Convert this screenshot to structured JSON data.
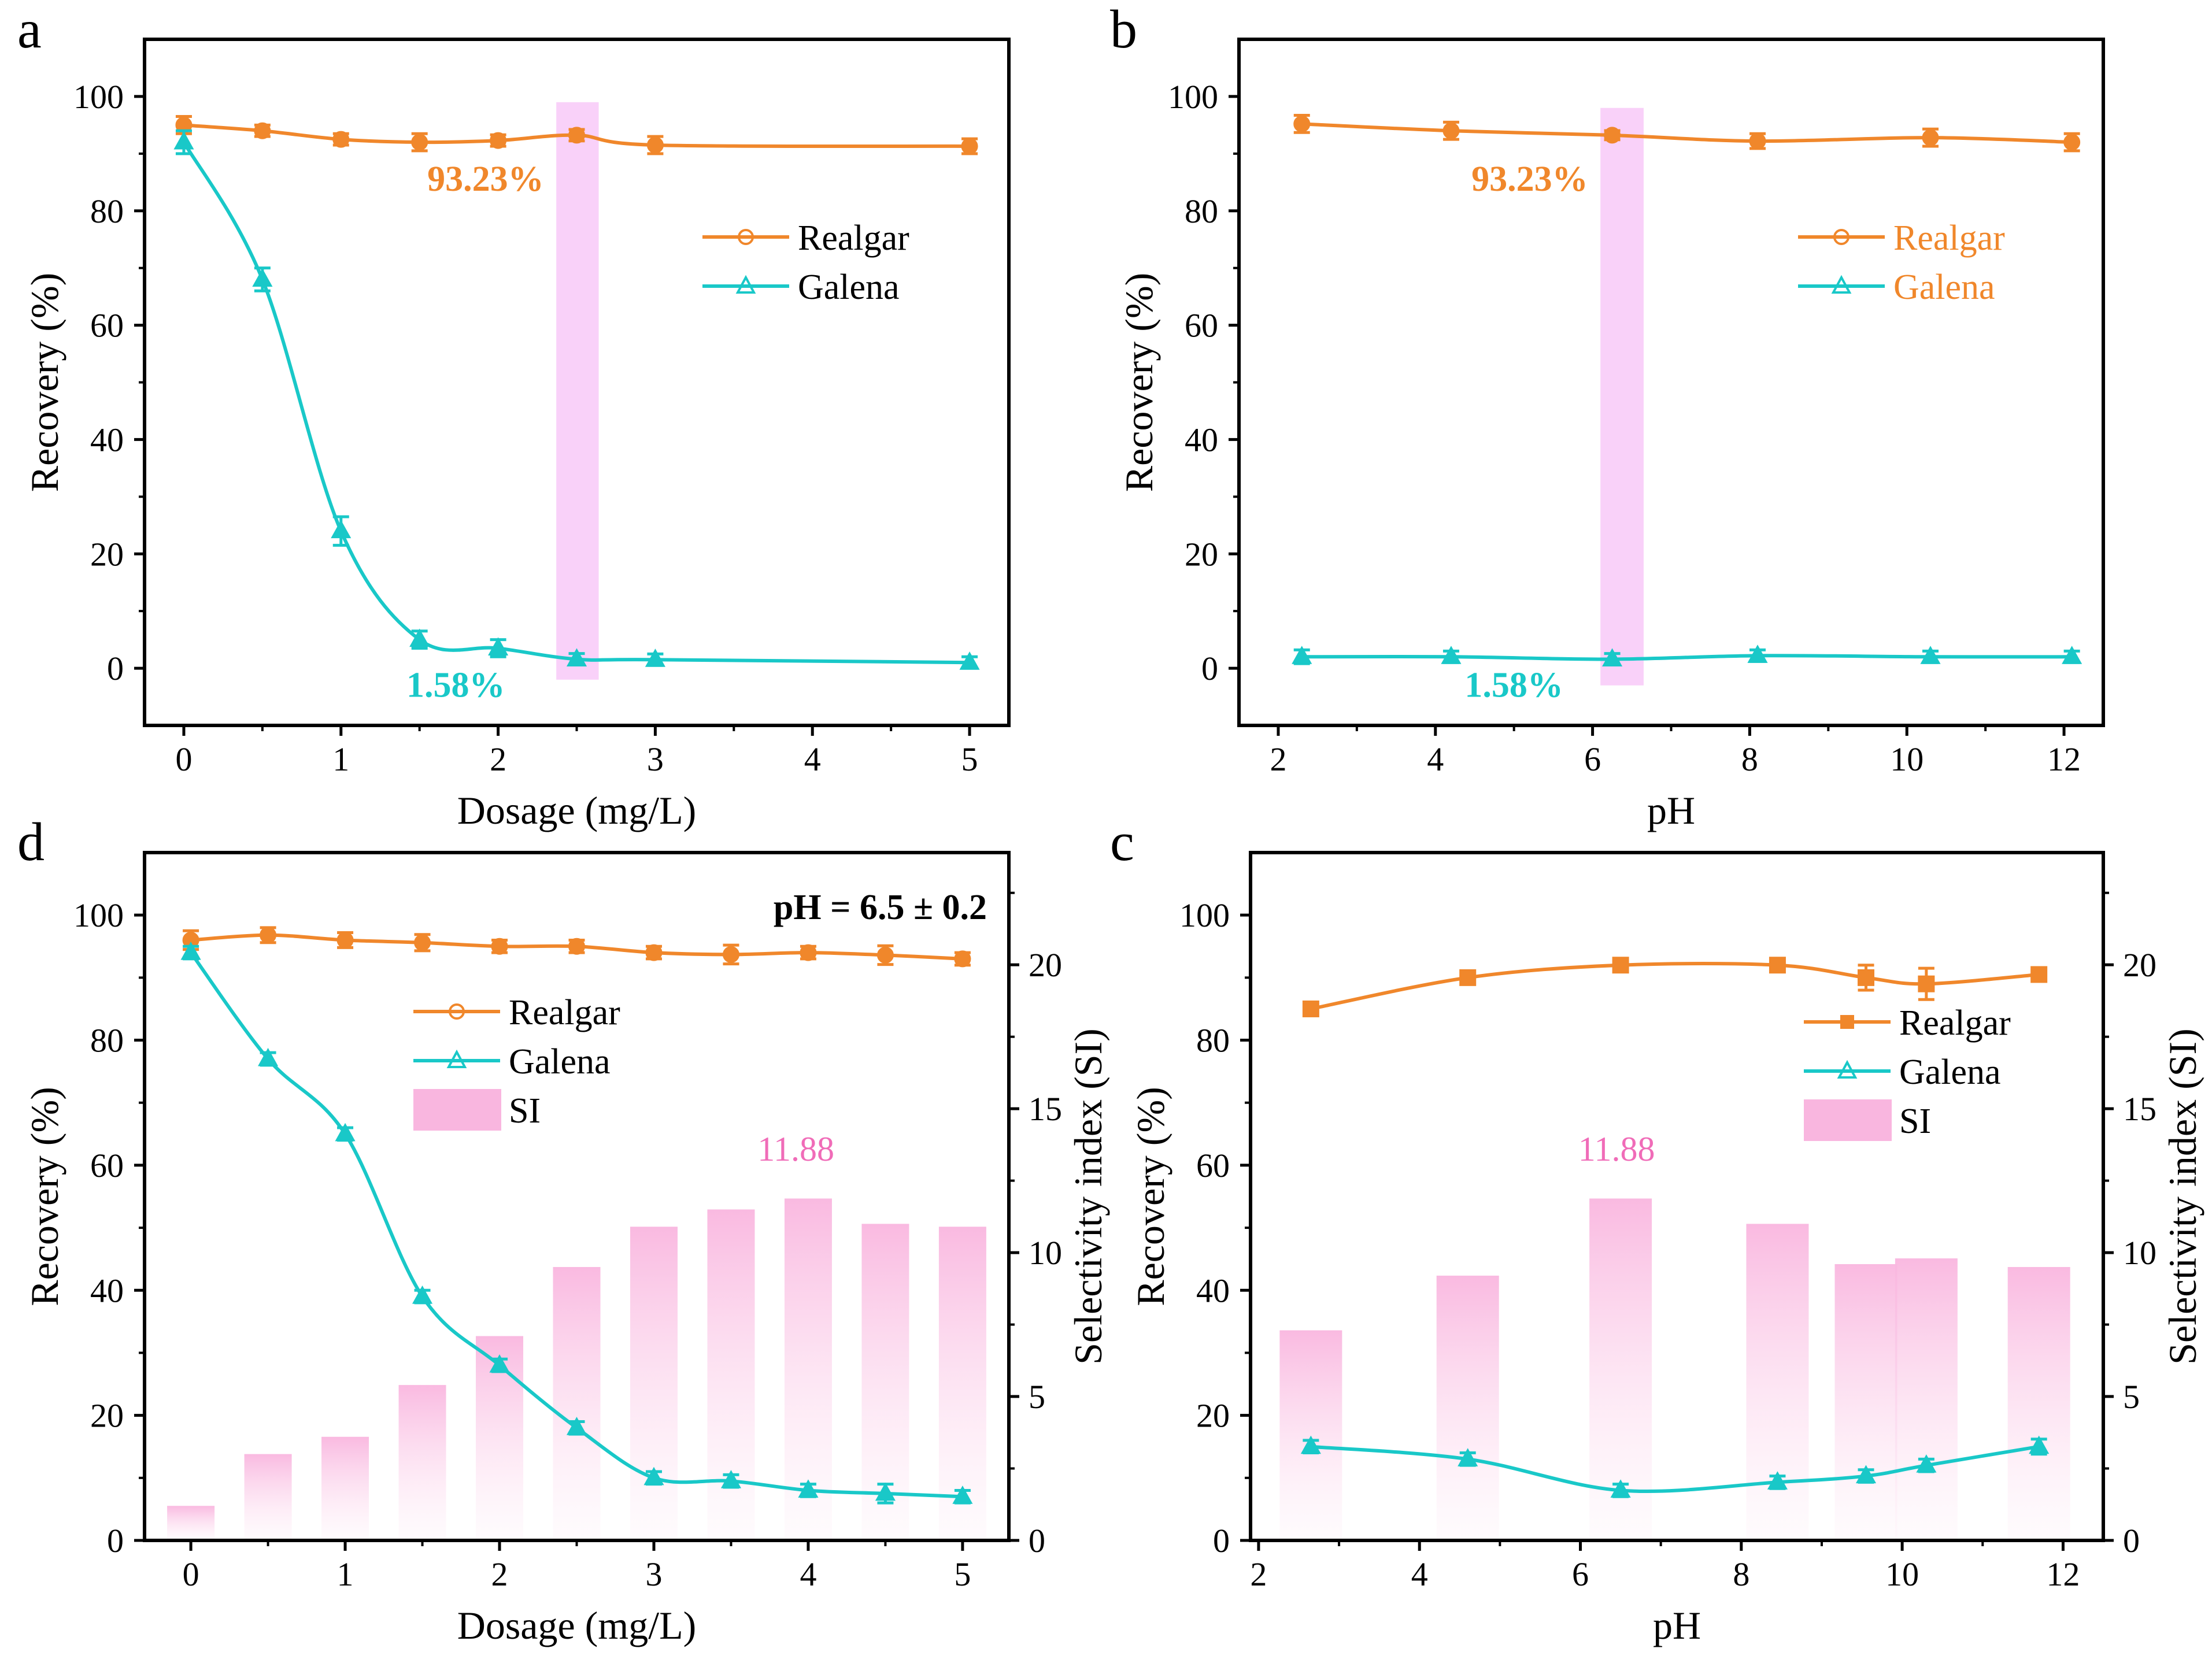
{
  "colors": {
    "realgar": "#F0872B",
    "galena": "#19C8C8",
    "si": "#F9B6DF",
    "highlight": "#F7C6F7",
    "axis": "#000000"
  },
  "chart_data": [
    {
      "id": "a",
      "letter": "a",
      "type": "line",
      "xlabel": "Dosage (mg/L)",
      "ylabel": "Recovery (%)",
      "xlim": [
        -0.25,
        5.25
      ],
      "ylim": [
        -10,
        110
      ],
      "xticks": [
        0,
        1,
        2,
        3,
        4,
        5
      ],
      "yticks": [
        0,
        20,
        40,
        60,
        80,
        100
      ],
      "highlight": {
        "x0": 2.37,
        "x1": 2.64,
        "y0": -2,
        "y1": 99
      },
      "series": [
        {
          "name": "Realgar",
          "color": "#F0872B",
          "marker": "circle",
          "x": [
            0,
            0.5,
            1,
            1.5,
            2,
            2.5,
            3,
            5
          ],
          "y": [
            95,
            94,
            92.5,
            92,
            92.3,
            93.23,
            91.5,
            91.3
          ],
          "err": [
            1.5,
            1.0,
            1.0,
            1.5,
            1.0,
            1.0,
            1.5,
            1.3
          ]
        },
        {
          "name": "Galena",
          "color": "#19C8C8",
          "marker": "triangle",
          "x": [
            0,
            0.5,
            1,
            1.5,
            2,
            2.5,
            3,
            5
          ],
          "y": [
            92,
            68,
            24,
            5,
            3.5,
            1.58,
            1.5,
            1.0
          ],
          "err": [
            2,
            2,
            2.5,
            1.5,
            1.5,
            1.0,
            1.0,
            1.0
          ]
        }
      ],
      "legend": {
        "position": "right",
        "entries": [
          "Realgar",
          "Galena"
        ],
        "text_color": "#000000"
      },
      "annotations": [
        {
          "text": "93.23%",
          "x": 1.92,
          "y": 83.5,
          "color": "#F0872B"
        },
        {
          "text": "1.58%",
          "x": 1.73,
          "y": -5,
          "color": "#19C8C8"
        }
      ]
    },
    {
      "id": "b",
      "letter": "b",
      "type": "line",
      "xlabel": "pH",
      "ylabel": "Recovery (%)",
      "xlim": [
        1.5,
        12.5
      ],
      "ylim": [
        -10,
        110
      ],
      "xticks": [
        2,
        4,
        6,
        8,
        10,
        12
      ],
      "yticks": [
        0,
        20,
        40,
        60,
        80,
        100
      ],
      "highlight": {
        "x0": 6.1,
        "x1": 6.65,
        "y0": -3,
        "y1": 98
      },
      "series": [
        {
          "name": "Realgar",
          "color": "#F0872B",
          "marker": "circle",
          "x": [
            2.3,
            4.2,
            6.25,
            8.1,
            10.3,
            12.1
          ],
          "y": [
            95.2,
            94,
            93.23,
            92.2,
            92.8,
            92
          ],
          "err": [
            1.5,
            1.5,
            0.8,
            1.3,
            1.5,
            1.5
          ]
        },
        {
          "name": "Galena",
          "color": "#19C8C8",
          "marker": "triangle",
          "x": [
            2.3,
            4.2,
            6.25,
            8.1,
            10.3,
            12.1
          ],
          "y": [
            2,
            2,
            1.58,
            2.2,
            2,
            2
          ],
          "err": [
            1.2,
            1.0,
            1.0,
            1.0,
            1.0,
            1.0
          ]
        }
      ],
      "legend": {
        "position": "right",
        "entries": [
          "Realgar",
          "Galena"
        ],
        "text_color": "#F0872B"
      },
      "annotations": [
        {
          "text": "93.23%",
          "x": 5.2,
          "y": 83.5,
          "color": "#F0872B"
        },
        {
          "text": "1.58%",
          "x": 5,
          "y": -5,
          "color": "#19C8C8"
        }
      ]
    },
    {
      "id": "d",
      "letter": "d",
      "type": "line+bar",
      "xlabel": "Dosage (mg/L)",
      "ylabel": "Recovery (%)",
      "y2label": "Selectivity index (SI)",
      "xlim": [
        -0.3,
        5.3
      ],
      "ylim": [
        0,
        110
      ],
      "y2lim": [
        0,
        23.9
      ],
      "xticks": [
        0,
        1,
        2,
        3,
        4,
        5
      ],
      "yticks": [
        0,
        20,
        40,
        60,
        80,
        100
      ],
      "y2ticks": [
        0,
        5,
        10,
        15,
        20
      ],
      "condition": "pH = 6.5 ± 0.2",
      "bars": {
        "name": "SI",
        "x": [
          0,
          0.5,
          1,
          1.5,
          2,
          2.5,
          3,
          3.5,
          4,
          4.5,
          5
        ],
        "values": [
          1.2,
          3.0,
          3.6,
          5.4,
          7.1,
          9.5,
          10.9,
          11.5,
          11.88,
          11.0,
          10.9
        ]
      },
      "series": [
        {
          "name": "Realgar",
          "color": "#F0872B",
          "marker": "circle",
          "x": [
            0,
            0.5,
            1,
            1.5,
            2,
            2.5,
            3,
            3.5,
            4,
            4.5,
            5
          ],
          "y": [
            96,
            96.8,
            96,
            95.6,
            95,
            95,
            94,
            93.7,
            94,
            93.6,
            93
          ],
          "err": [
            1.5,
            1.2,
            1.2,
            1.3,
            1.0,
            1.0,
            1.0,
            1.5,
            1.0,
            1.5,
            1.0
          ]
        },
        {
          "name": "Galena",
          "color": "#19C8C8",
          "marker": "triangle",
          "x": [
            0,
            0.5,
            1,
            1.5,
            2,
            2.5,
            3,
            3.5,
            4,
            4.5,
            5
          ],
          "y": [
            94,
            77,
            65,
            39,
            28,
            18,
            10,
            9.5,
            8,
            7.5,
            7
          ],
          "err": [
            1.0,
            1.0,
            1.0,
            1.0,
            1.0,
            1.0,
            1.0,
            1.0,
            1.0,
            1.5,
            1.0
          ]
        }
      ],
      "legend": {
        "position": "center",
        "entries": [
          "Realgar",
          "Galena",
          "SI"
        ],
        "text_color": "#000000"
      },
      "annotations": [
        {
          "text": "11.88",
          "x": 3.92,
          "y": 13.2,
          "axis": "y2",
          "color": "#F06CB8"
        }
      ]
    },
    {
      "id": "c",
      "letter": "c",
      "type": "line+bar",
      "xlabel": "pH",
      "ylabel": "Recovery (%)",
      "y2label": "Selectivity index (SI)",
      "xlim": [
        1.9,
        12.5
      ],
      "ylim": [
        0,
        110
      ],
      "y2lim": [
        0,
        23.9
      ],
      "xticks": [
        2,
        4,
        6,
        8,
        10,
        12
      ],
      "yticks": [
        0,
        20,
        40,
        60,
        80,
        100
      ],
      "y2ticks": [
        0,
        5,
        10,
        15,
        20
      ],
      "bars": {
        "name": "SI",
        "x": [
          2.65,
          4.6,
          6.5,
          8.45,
          9.55,
          10.3,
          11.7
        ],
        "values": [
          7.3,
          9.2,
          11.88,
          11.0,
          9.6,
          9.8,
          9.5
        ]
      },
      "series": [
        {
          "name": "Realgar",
          "color": "#F0872B",
          "marker": "square",
          "x": [
            2.65,
            4.6,
            6.5,
            8.45,
            9.55,
            10.3,
            11.7
          ],
          "y": [
            85,
            90,
            92,
            92,
            90,
            89,
            90.5
          ],
          "err": [
            1.0,
            1.0,
            1.0,
            1.0,
            2.0,
            2.5,
            0.8
          ]
        },
        {
          "name": "Galena",
          "color": "#19C8C8",
          "marker": "triangle",
          "x": [
            2.65,
            4.6,
            6.5,
            8.45,
            9.55,
            10.3,
            11.7
          ],
          "y": [
            15,
            13,
            8,
            9.3,
            10.3,
            12,
            15
          ],
          "err": [
            1.0,
            1.0,
            1.0,
            1.0,
            1.0,
            1.0,
            1.2
          ]
        }
      ],
      "legend": {
        "position": "right",
        "entries": [
          "Realgar",
          "Galena",
          "SI"
        ],
        "text_color": "#000000"
      },
      "annotations": [
        {
          "text": "11.88",
          "x": 6.45,
          "y": 13.2,
          "axis": "y2",
          "color": "#F06CB8"
        }
      ]
    }
  ]
}
